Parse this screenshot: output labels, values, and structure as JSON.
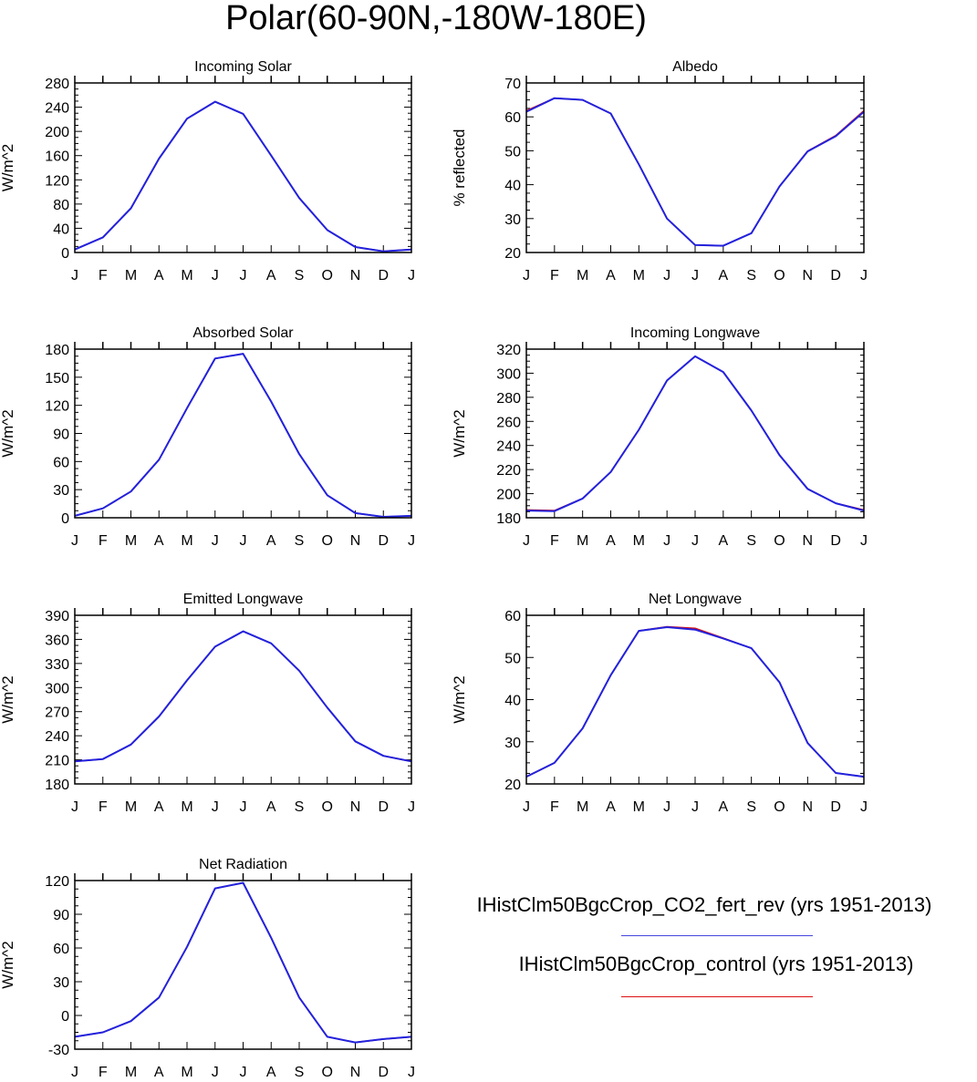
{
  "title": "Polar(60-90N,-180W-180E)",
  "months": [
    "J",
    "F",
    "M",
    "A",
    "M",
    "J",
    "J",
    "A",
    "S",
    "O",
    "N",
    "D",
    "J"
  ],
  "colors": {
    "fert_rev": "#2222dd",
    "control": "#dd1111"
  },
  "legend": [
    {
      "label": "IHistClm50BgcCrop_CO2_fert_rev (yrs 1951-2013)",
      "color": "#4444dd"
    },
    {
      "label": "IHistClm50BgcCrop_control (yrs 1951-2013)",
      "color": "#dd1111"
    }
  ],
  "chart_data": [
    {
      "type": "line",
      "title": "Incoming Solar",
      "ylabel": "W/m^2",
      "ylim": [
        0,
        280
      ],
      "yticks": [
        0,
        40,
        80,
        120,
        160,
        200,
        240,
        280
      ],
      "categories": [
        "J",
        "F",
        "M",
        "A",
        "M",
        "J",
        "J",
        "A",
        "S",
        "O",
        "N",
        "D",
        "J"
      ],
      "series": [
        {
          "name": "IHistClm50BgcCrop_CO2_fert_rev (yrs 1951-2013)",
          "values": [
            5,
            25,
            73,
            155,
            221,
            249,
            229,
            160,
            90,
            37,
            9,
            2,
            5
          ]
        },
        {
          "name": "IHistClm50BgcCrop_control (yrs 1951-2013)",
          "values": [
            5,
            25,
            73,
            155,
            221,
            249,
            229,
            160,
            90,
            37,
            9,
            2,
            5
          ]
        }
      ]
    },
    {
      "type": "line",
      "title": "Albedo",
      "ylabel": "% reflected",
      "ylim": [
        20,
        70
      ],
      "yticks": [
        20,
        30,
        40,
        50,
        60,
        70
      ],
      "categories": [
        "J",
        "F",
        "M",
        "A",
        "M",
        "J",
        "J",
        "A",
        "S",
        "O",
        "N",
        "D",
        "J"
      ],
      "series": [
        {
          "name": "IHistClm50BgcCrop_CO2_fert_rev (yrs 1951-2013)",
          "values": [
            61.5,
            65.5,
            65.0,
            61.0,
            46.0,
            30.0,
            22.2,
            22.0,
            25.7,
            39.5,
            49.8,
            54.3,
            61.5
          ]
        },
        {
          "name": "IHistClm50BgcCrop_control (yrs 1951-2013)",
          "values": [
            61.8,
            65.5,
            65.0,
            61.0,
            46.0,
            30.0,
            22.2,
            22.0,
            25.7,
            39.5,
            49.9,
            54.5,
            61.8
          ]
        }
      ]
    },
    {
      "type": "line",
      "title": "Absorbed Solar",
      "ylabel": "W/m^2",
      "ylim": [
        0,
        180
      ],
      "yticks": [
        0,
        30,
        60,
        90,
        120,
        150,
        180
      ],
      "categories": [
        "J",
        "F",
        "M",
        "A",
        "M",
        "J",
        "J",
        "A",
        "S",
        "O",
        "N",
        "D",
        "J"
      ],
      "series": [
        {
          "name": "IHistClm50BgcCrop_CO2_fert_rev (yrs 1951-2013)",
          "values": [
            2,
            10,
            28,
            62,
            117,
            170,
            175,
            124,
            68,
            24,
            5,
            1,
            2
          ]
        },
        {
          "name": "IHistClm50BgcCrop_control (yrs 1951-2013)",
          "values": [
            2,
            10,
            28,
            62,
            117,
            170,
            175,
            124,
            68,
            24,
            5,
            1,
            2
          ]
        }
      ]
    },
    {
      "type": "line",
      "title": "Incoming Longwave",
      "ylabel": "W/m^2",
      "ylim": [
        180,
        320
      ],
      "yticks": [
        180,
        200,
        220,
        240,
        260,
        280,
        300,
        320
      ],
      "categories": [
        "J",
        "F",
        "M",
        "A",
        "M",
        "J",
        "J",
        "A",
        "S",
        "O",
        "N",
        "D",
        "J"
      ],
      "series": [
        {
          "name": "IHistClm50BgcCrop_CO2_fert_rev (yrs 1951-2013)",
          "values": [
            186,
            185.5,
            196,
            218,
            253,
            294,
            314,
            301,
            269,
            232,
            204,
            192,
            186
          ]
        },
        {
          "name": "IHistClm50BgcCrop_control (yrs 1951-2013)",
          "values": [
            186.5,
            186,
            196,
            218,
            253,
            294,
            314,
            301,
            269,
            232,
            204,
            192,
            186.5
          ]
        }
      ]
    },
    {
      "type": "line",
      "title": "Emitted Longwave",
      "ylabel": "W/m^2",
      "ylim": [
        180,
        390
      ],
      "yticks": [
        180,
        210,
        240,
        270,
        300,
        330,
        360,
        390
      ],
      "categories": [
        "J",
        "F",
        "M",
        "A",
        "M",
        "J",
        "J",
        "A",
        "S",
        "O",
        "N",
        "D",
        "J"
      ],
      "series": [
        {
          "name": "IHistClm50BgcCrop_CO2_fert_rev (yrs 1951-2013)",
          "values": [
            208,
            211,
            229,
            264,
            309,
            351,
            370,
            355,
            321,
            275,
            233,
            215,
            208
          ]
        },
        {
          "name": "IHistClm50BgcCrop_control (yrs 1951-2013)",
          "values": [
            208,
            211,
            229,
            264,
            309,
            351,
            370,
            355,
            321,
            275,
            233,
            215,
            208
          ]
        }
      ]
    },
    {
      "type": "line",
      "title": "Net Longwave",
      "ylabel": "W/m^2",
      "ylim": [
        20,
        60
      ],
      "yticks": [
        20,
        30,
        40,
        50,
        60
      ],
      "categories": [
        "J",
        "F",
        "M",
        "A",
        "M",
        "J",
        "J",
        "A",
        "S",
        "O",
        "N",
        "D",
        "J"
      ],
      "series": [
        {
          "name": "IHistClm50BgcCrop_CO2_fert_rev (yrs 1951-2013)",
          "values": [
            21.7,
            25.0,
            33.2,
            45.8,
            56.3,
            57.2,
            56.6,
            54.5,
            52.2,
            44.1,
            29.7,
            22.6,
            21.7
          ]
        },
        {
          "name": "IHistClm50BgcCrop_control (yrs 1951-2013)",
          "values": [
            21.7,
            25.0,
            33.2,
            45.8,
            56.3,
            57.3,
            56.9,
            54.6,
            52.2,
            44.1,
            29.7,
            22.6,
            21.7
          ]
        }
      ]
    },
    {
      "type": "line",
      "title": "Net Radiation",
      "ylabel": "W/m^2",
      "ylim": [
        -30,
        120
      ],
      "yticks": [
        -30,
        0,
        30,
        60,
        90,
        120
      ],
      "categories": [
        "J",
        "F",
        "M",
        "A",
        "M",
        "J",
        "J",
        "A",
        "S",
        "O",
        "N",
        "D",
        "J"
      ],
      "series": [
        {
          "name": "IHistClm50BgcCrop_CO2_fert_rev (yrs 1951-2013)",
          "values": [
            -19,
            -15,
            -5,
            16,
            61,
            113,
            118,
            69,
            16,
            -19,
            -24,
            -21,
            -19
          ]
        },
        {
          "name": "IHistClm50BgcCrop_control (yrs 1951-2013)",
          "values": [
            -19,
            -15,
            -5,
            16,
            61,
            113,
            118,
            69,
            16,
            -19,
            -24,
            -21,
            -19
          ]
        }
      ]
    }
  ]
}
